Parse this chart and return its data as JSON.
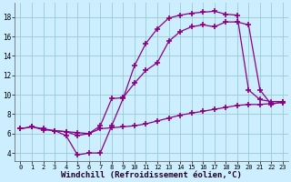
{
  "bg_color": "#cceeff",
  "grid_color": "#99cccc",
  "line_color": "#880088",
  "marker": "+",
  "markersize": 4,
  "linewidth": 0.9,
  "markeredgewidth": 1.2,
  "xlabel": "Windchill (Refroidissement éolien,°C)",
  "xlabel_fontsize": 6.5,
  "tick_fontsize": 5.5,
  "xlim": [
    -0.5,
    23.5
  ],
  "ylim": [
    3.2,
    19.5
  ],
  "yticks": [
    4,
    6,
    8,
    10,
    12,
    14,
    16,
    18
  ],
  "xticks": [
    0,
    1,
    2,
    3,
    4,
    5,
    6,
    7,
    8,
    9,
    10,
    11,
    12,
    13,
    14,
    15,
    16,
    17,
    18,
    19,
    20,
    21,
    22,
    23
  ],
  "line1_x": [
    0,
    1,
    2,
    3,
    4,
    5,
    6,
    7,
    8,
    9,
    10,
    11,
    12,
    13,
    14,
    15,
    16,
    17,
    18,
    19,
    20,
    21,
    22,
    23
  ],
  "line1_y": [
    6.5,
    6.7,
    6.4,
    6.3,
    5.8,
    3.8,
    4.0,
    4.0,
    6.8,
    9.6,
    13.0,
    15.3,
    16.8,
    17.9,
    18.2,
    18.4,
    18.5,
    18.6,
    18.3,
    18.2,
    10.5,
    9.5,
    9.3,
    9.3
  ],
  "line2_x": [
    0,
    1,
    2,
    3,
    4,
    5,
    6,
    7,
    8,
    9,
    10,
    11,
    12,
    13,
    14,
    15,
    16,
    17,
    18,
    19,
    20,
    21,
    22,
    23
  ],
  "line2_y": [
    6.5,
    6.7,
    6.5,
    6.3,
    6.2,
    6.1,
    6.0,
    6.5,
    6.6,
    6.7,
    6.8,
    7.0,
    7.3,
    7.6,
    7.9,
    8.1,
    8.3,
    8.5,
    8.7,
    8.9,
    9.0,
    9.0,
    9.1,
    9.2
  ],
  "line3_x": [
    3,
    4,
    5,
    6,
    7,
    8,
    9,
    10,
    11,
    12,
    13,
    14,
    15,
    16,
    17,
    18,
    19,
    20,
    21,
    22,
    23
  ],
  "line3_y": [
    6.3,
    6.2,
    5.8,
    6.0,
    6.8,
    9.6,
    9.7,
    11.2,
    12.5,
    13.3,
    15.5,
    16.5,
    17.0,
    17.2,
    17.0,
    17.5,
    17.5,
    17.2,
    10.5,
    9.0,
    9.3
  ]
}
